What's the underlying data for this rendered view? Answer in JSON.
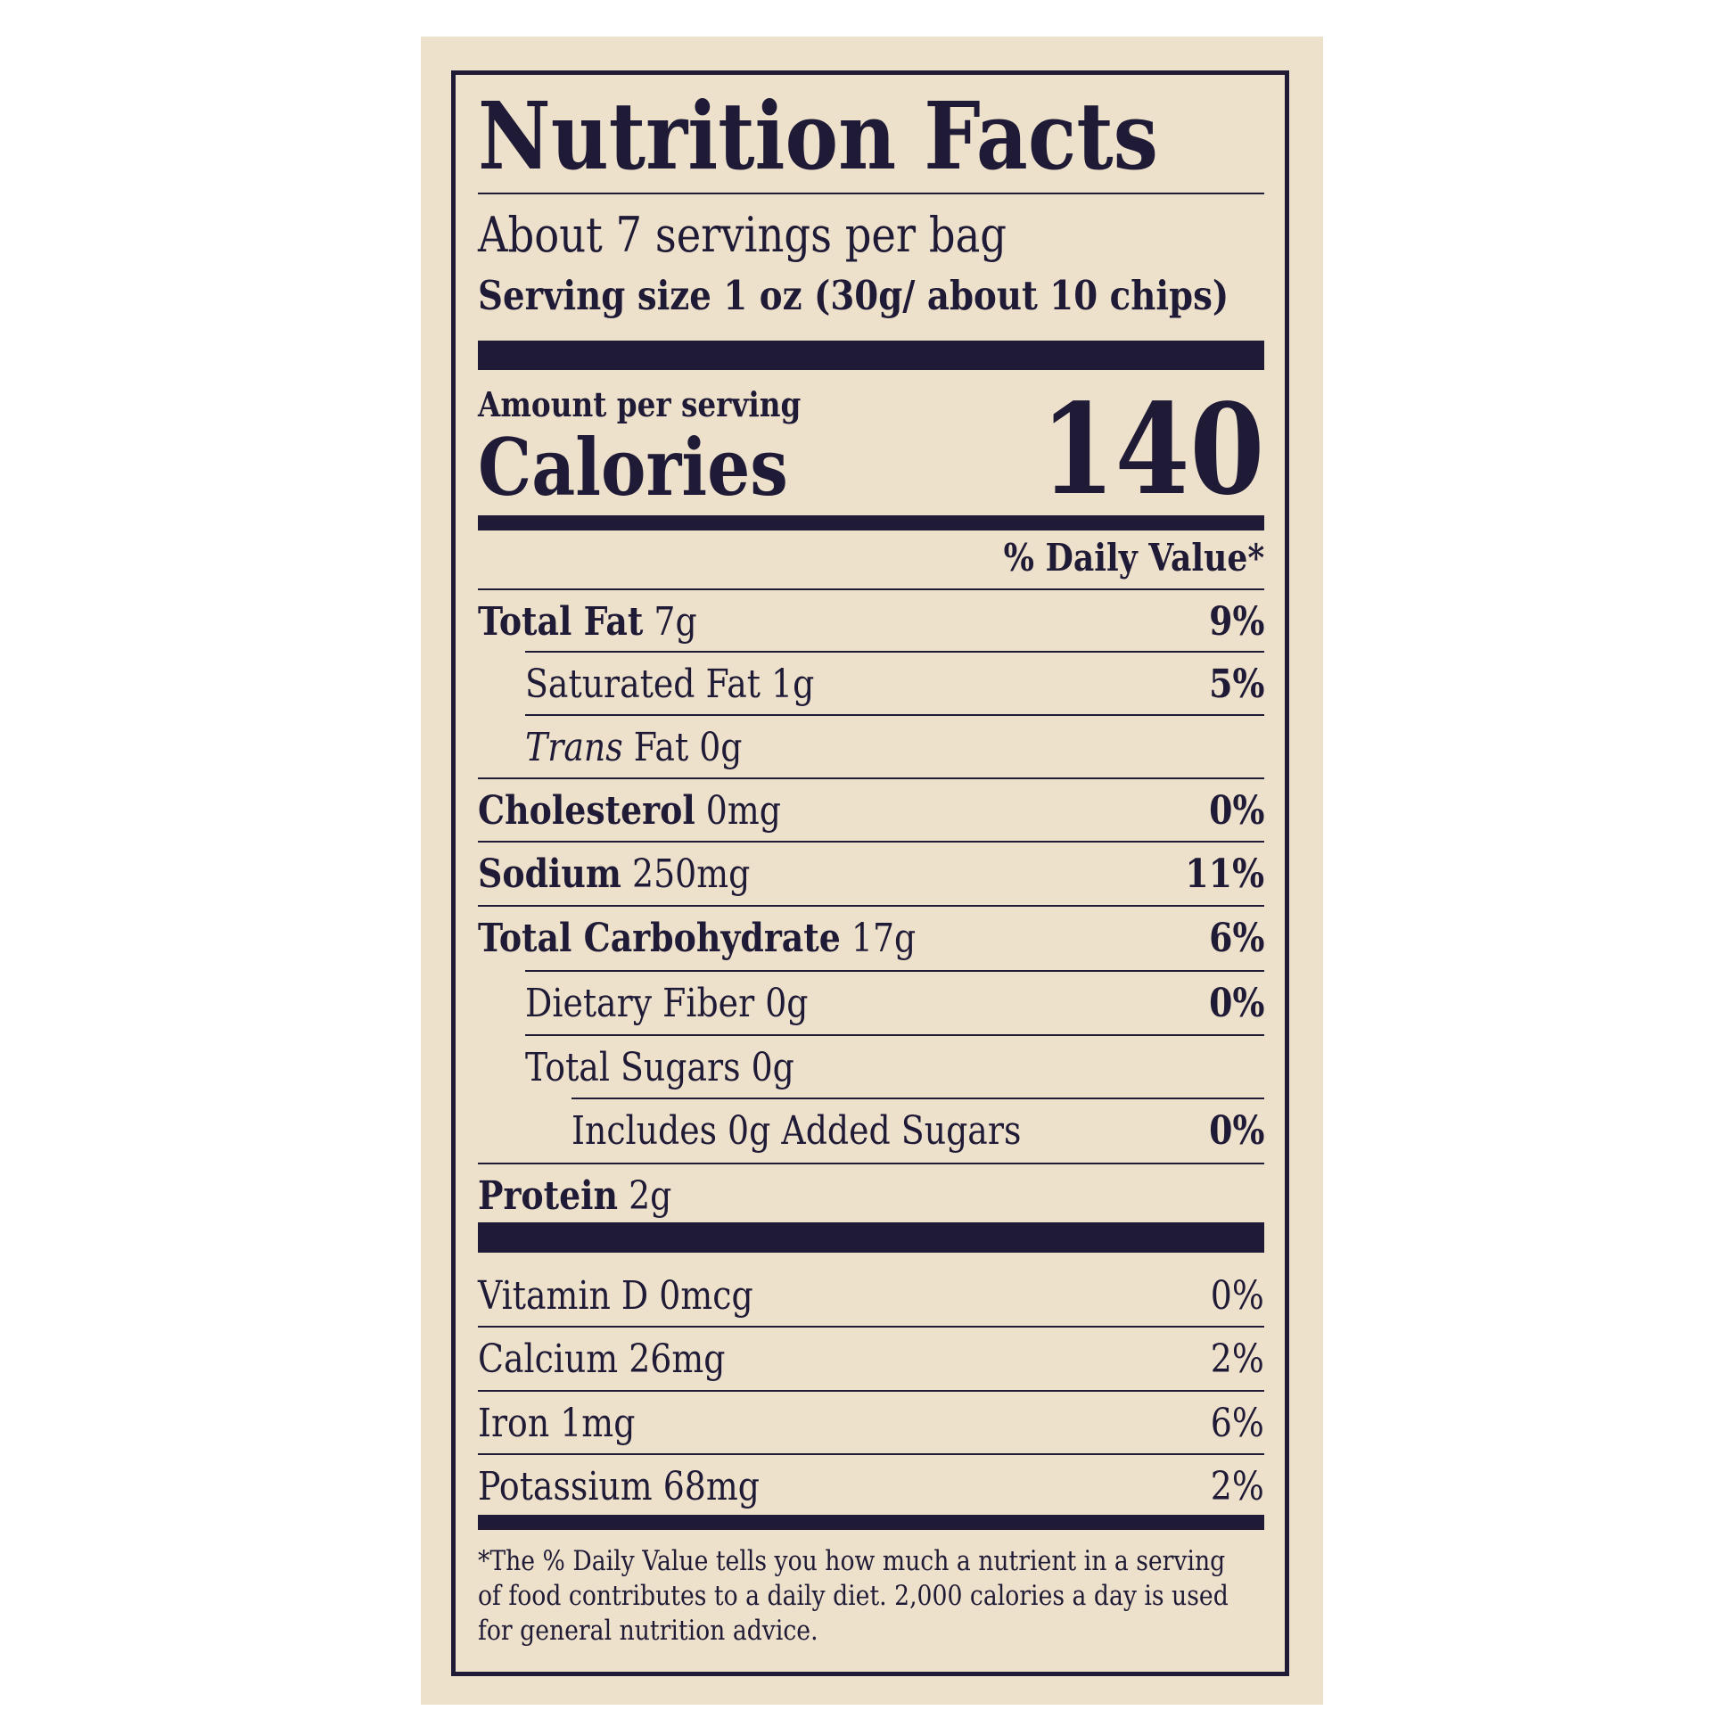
{
  "title": "Nutrition Facts",
  "servings_per_container": "About 7 servings per bag",
  "serving_size": "Serving size 1 oz (30g/ about 10 chips)",
  "amount_per_serving": "Amount per serving",
  "calories_label": "Calories",
  "calories_value": "140",
  "daily_value_header": "% Daily Value*",
  "nutrients": [
    {
      "name": "Total Fat",
      "amount": "7g",
      "dv": "9%",
      "bold": true,
      "indent": 0
    },
    {
      "name": "Saturated Fat",
      "amount": "1g",
      "dv": "5%",
      "bold": false,
      "indent": 1
    },
    {
      "name": "Trans",
      "name_suffix": "Fat",
      "amount": "0g",
      "dv": "",
      "bold": false,
      "indent": 1,
      "italic_name": true
    },
    {
      "name": "Cholesterol",
      "amount": "0mg",
      "dv": "0%",
      "bold": true,
      "indent": 0
    },
    {
      "name": "Sodium",
      "amount": "250mg",
      "dv": "11%",
      "bold": true,
      "indent": 0
    },
    {
      "name": "Total Carbohydrate",
      "amount": "17g",
      "dv": "6%",
      "bold": true,
      "indent": 0
    },
    {
      "name": "Dietary Fiber",
      "amount": "0g",
      "dv": "0%",
      "bold": false,
      "indent": 1
    },
    {
      "name": "Total Sugars",
      "amount": "0g",
      "dv": "",
      "bold": false,
      "indent": 1
    },
    {
      "name": "Includes 0g Added Sugars",
      "amount": "",
      "dv": "0%",
      "bold": false,
      "indent": 2
    },
    {
      "name": "Protein",
      "amount": "2g",
      "dv": "",
      "bold": true,
      "indent": 0
    }
  ],
  "vitamins": [
    {
      "name": "Vitamin D",
      "amount": "0mcg",
      "dv": "0%"
    },
    {
      "name": "Calcium",
      "amount": "26mg",
      "dv": "2%"
    },
    {
      "name": "Iron",
      "amount": "1mg",
      "dv": "6%"
    },
    {
      "name": "Potassium",
      "amount": "68mg",
      "dv": "2%"
    }
  ],
  "footnote": "*The % Daily Value tells you how much a nutrient in a serving of food contributes to a daily diet. 2,000 calories a day is used for general nutrition advice.",
  "colors": {
    "background": "#eee1cc",
    "ink": "#1f1a35"
  }
}
